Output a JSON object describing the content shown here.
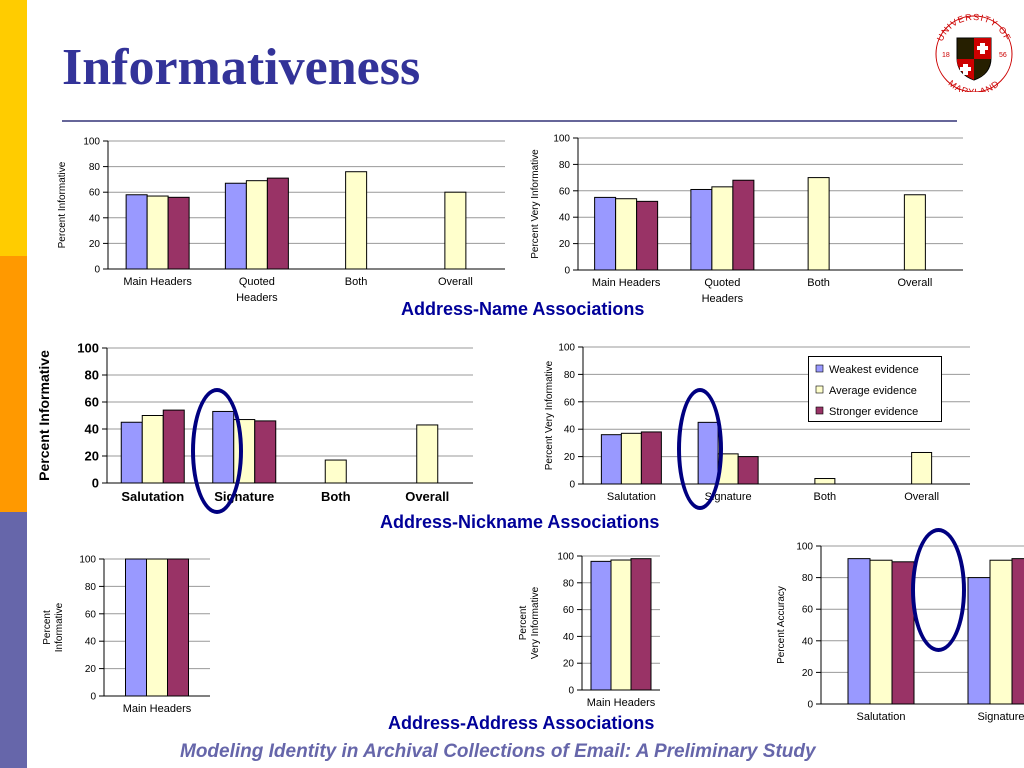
{
  "title": "Informativeness",
  "footer": "Modeling Identity in Archival Collections of Email: A Preliminary Study",
  "logo": {
    "text_top": "UNIVERSITY OF",
    "text_bottom": "MARYLAND",
    "year_left": "18",
    "year_right": "56"
  },
  "sections": {
    "name": "Address-Name Associations",
    "nickname": "Address-Nickname Associations",
    "address": "Address-Address Associations"
  },
  "colors": {
    "weakest": "#9999ff",
    "average": "#ffffcc",
    "stronger": "#993366",
    "highlight": "#000080",
    "title": "#333399"
  },
  "legend": {
    "placement": "top-right",
    "entries": [
      "Weakest evidence",
      "Average evidence",
      "Stronger evidence"
    ]
  },
  "chart_data": [
    {
      "id": "name_inf",
      "type": "bar",
      "ylabel": "Percent Informative",
      "ylim": [
        0,
        100
      ],
      "yticks": [
        0,
        20,
        40,
        60,
        80,
        100
      ],
      "grid": true,
      "categories": [
        [
          "Main Headers"
        ],
        [
          "Quoted",
          "Headers"
        ],
        [
          "Both"
        ],
        [
          "Overall"
        ]
      ],
      "series": [
        {
          "name": "Weakest evidence",
          "values": [
            58,
            67,
            null,
            null
          ]
        },
        {
          "name": "Average evidence",
          "values": [
            57,
            69,
            76,
            60
          ]
        },
        {
          "name": "Stronger evidence",
          "values": [
            56,
            71,
            null,
            null
          ]
        }
      ]
    },
    {
      "id": "name_vinf",
      "type": "bar",
      "ylabel": "Percent Very Informative",
      "ylim": [
        0,
        100
      ],
      "yticks": [
        0,
        20,
        40,
        60,
        80,
        100
      ],
      "grid": true,
      "categories": [
        [
          "Main Headers"
        ],
        [
          "Quoted",
          "Headers"
        ],
        [
          "Both"
        ],
        [
          "Overall"
        ]
      ],
      "series": [
        {
          "name": "Weakest evidence",
          "values": [
            55,
            61,
            null,
            null
          ]
        },
        {
          "name": "Average evidence",
          "values": [
            54,
            63,
            70,
            57
          ]
        },
        {
          "name": "Stronger evidence",
          "values": [
            52,
            68,
            null,
            null
          ]
        }
      ]
    },
    {
      "id": "nick_inf",
      "type": "bar",
      "ylabel": "Percent Informative",
      "ylim": [
        0,
        100
      ],
      "yticks": [
        0,
        20,
        40,
        60,
        80,
        100
      ],
      "grid": true,
      "categories": [
        [
          "Salutation"
        ],
        [
          "Signature"
        ],
        [
          "Both"
        ],
        [
          "Overall"
        ]
      ],
      "series": [
        {
          "name": "Weakest evidence",
          "values": [
            45,
            53,
            null,
            null
          ]
        },
        {
          "name": "Average evidence",
          "values": [
            50,
            47,
            17,
            43
          ]
        },
        {
          "name": "Stronger evidence",
          "values": [
            54,
            46,
            null,
            null
          ]
        }
      ]
    },
    {
      "id": "nick_vinf",
      "type": "bar",
      "ylabel": "Percent Very Informative",
      "ylim": [
        0,
        100
      ],
      "yticks": [
        0,
        20,
        40,
        60,
        80,
        100
      ],
      "grid": true,
      "categories": [
        [
          "Salutation"
        ],
        [
          "Signature"
        ],
        [
          "Both"
        ],
        [
          "Overall"
        ]
      ],
      "series": [
        {
          "name": "Weakest evidence",
          "values": [
            36,
            45,
            null,
            null
          ]
        },
        {
          "name": "Average evidence",
          "values": [
            37,
            22,
            4,
            23
          ]
        },
        {
          "name": "Stronger evidence",
          "values": [
            38,
            20,
            null,
            null
          ]
        }
      ]
    },
    {
      "id": "addr_inf",
      "type": "bar",
      "ylabel": "Percent Informative",
      "ylim": [
        0,
        100
      ],
      "yticks": [
        0,
        20,
        40,
        60,
        80,
        100
      ],
      "grid": true,
      "categories": [
        [
          "Main Headers"
        ]
      ],
      "series": [
        {
          "name": "Weakest evidence",
          "values": [
            100
          ]
        },
        {
          "name": "Average evidence",
          "values": [
            100
          ]
        },
        {
          "name": "Stronger evidence",
          "values": [
            100
          ]
        }
      ]
    },
    {
      "id": "addr_vinf",
      "type": "bar",
      "ylabel": "Percent Very Informative",
      "ylim": [
        0,
        100
      ],
      "yticks": [
        0,
        20,
        40,
        60,
        80,
        100
      ],
      "grid": true,
      "categories": [
        [
          "Main Headers"
        ]
      ],
      "series": [
        {
          "name": "Weakest evidence",
          "values": [
            96
          ]
        },
        {
          "name": "Average evidence",
          "values": [
            97
          ]
        },
        {
          "name": "Stronger evidence",
          "values": [
            98
          ]
        }
      ]
    },
    {
      "id": "addr_acc",
      "type": "bar",
      "ylabel": "Percent Accuracy",
      "ylim": [
        0,
        100
      ],
      "yticks": [
        0,
        20,
        40,
        60,
        80,
        100
      ],
      "grid": true,
      "categories": [
        [
          "Salutation"
        ],
        [
          "Signature"
        ]
      ],
      "series": [
        {
          "name": "Weakest evidence",
          "values": [
            92,
            80
          ]
        },
        {
          "name": "Average evidence",
          "values": [
            91,
            91
          ]
        },
        {
          "name": "Stronger evidence",
          "values": [
            90,
            92
          ]
        }
      ]
    }
  ]
}
